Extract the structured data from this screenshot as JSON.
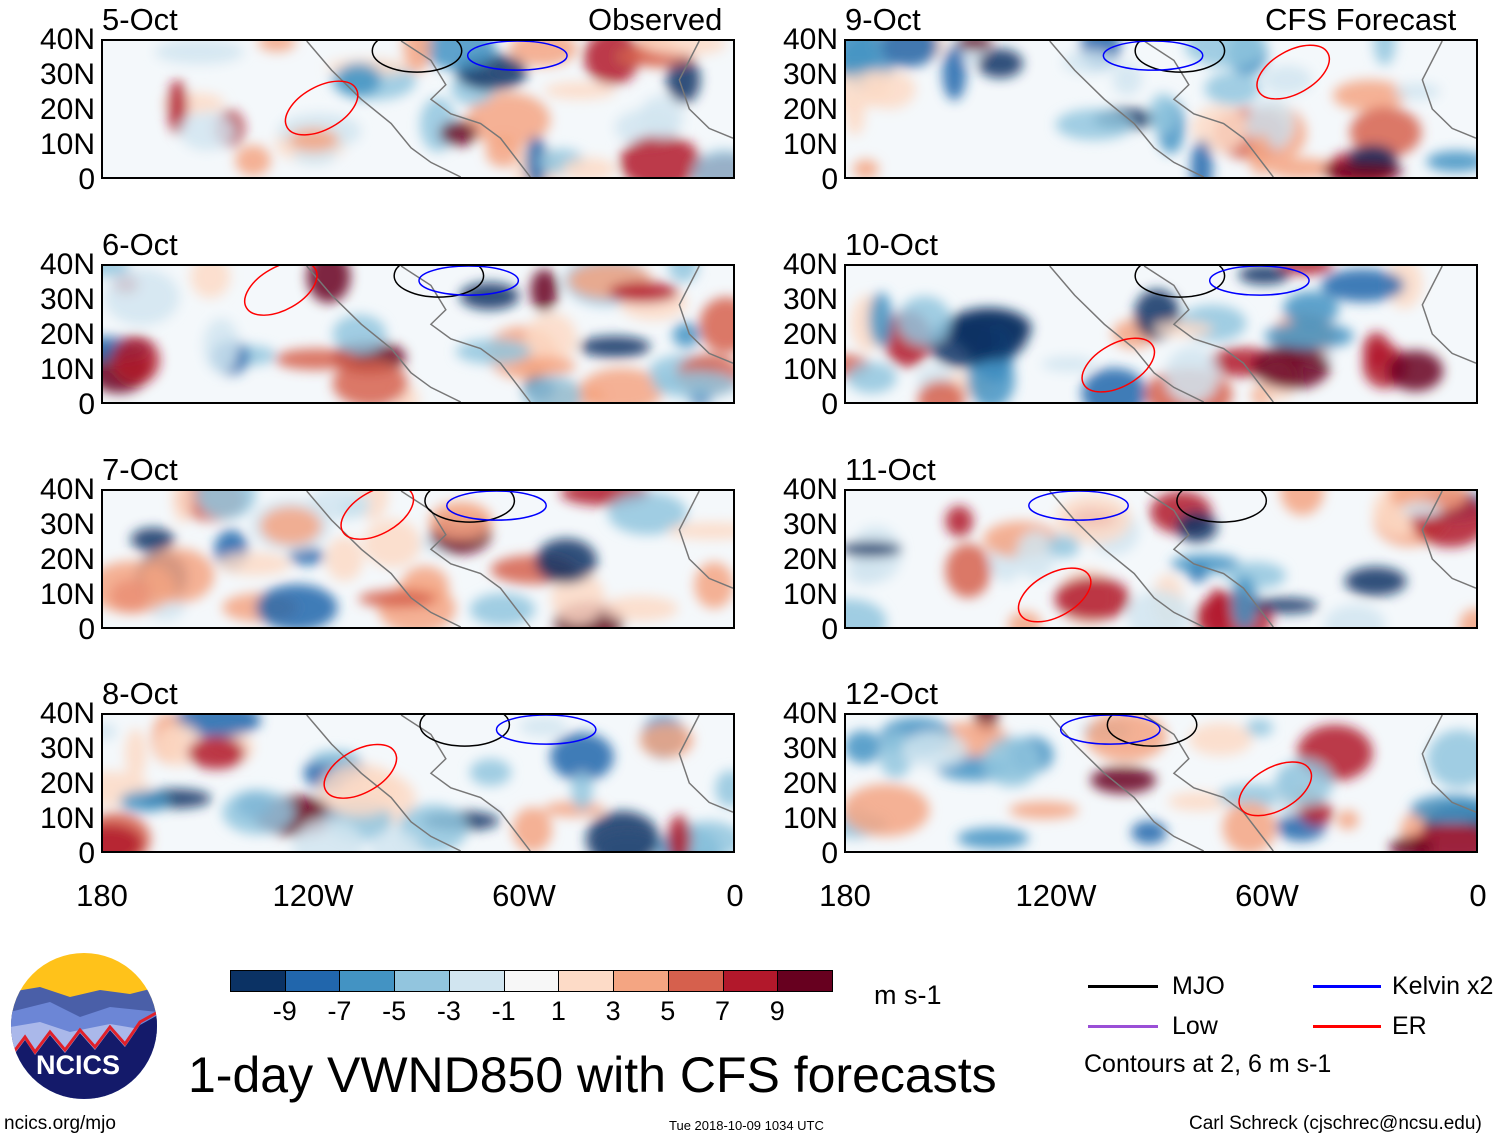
{
  "headers": {
    "left": "Observed",
    "right": "CFS Forecast"
  },
  "panels": [
    {
      "date": "5-Oct",
      "column": "left"
    },
    {
      "date": "6-Oct",
      "column": "left"
    },
    {
      "date": "7-Oct",
      "column": "left"
    },
    {
      "date": "8-Oct",
      "column": "left"
    },
    {
      "date": "9-Oct",
      "column": "right"
    },
    {
      "date": "10-Oct",
      "column": "right"
    },
    {
      "date": "11-Oct",
      "column": "right"
    },
    {
      "date": "12-Oct",
      "column": "right"
    }
  ],
  "y_ticks": [
    "40N",
    "30N",
    "20N",
    "10N",
    "0"
  ],
  "x_ticks": [
    "180",
    "120W",
    "60W",
    "0"
  ],
  "colorbar": {
    "colors": [
      "#0b3264",
      "#2166ac",
      "#4393c3",
      "#92c5de",
      "#d1e5f0",
      "#f7f7f7",
      "#fddbc7",
      "#f4a582",
      "#d6604d",
      "#b2182b",
      "#67001f"
    ],
    "labels": [
      "-9",
      "-7",
      "-5",
      "-3",
      "-1",
      "1",
      "3",
      "5",
      "7",
      "9"
    ],
    "units": "m s-1"
  },
  "title": "1-day VWND850 with CFS forecasts",
  "legend": {
    "items": [
      {
        "label": "MJO",
        "color": "#000000"
      },
      {
        "label": "Kelvin x2",
        "color": "#0000ff"
      },
      {
        "label": "Low",
        "color": "#9a4fd6"
      },
      {
        "label": "ER",
        "color": "#ff0000"
      }
    ],
    "note": "Contours at 2, 6 m s-1"
  },
  "logo": {
    "text": "NCICS"
  },
  "footer": {
    "url": "ncics.org/mjo",
    "timestamp": "Tue 2018-10-09 1034 UTC",
    "credit": "Carl Schreck (cjschrec@ncsu.edu)"
  }
}
